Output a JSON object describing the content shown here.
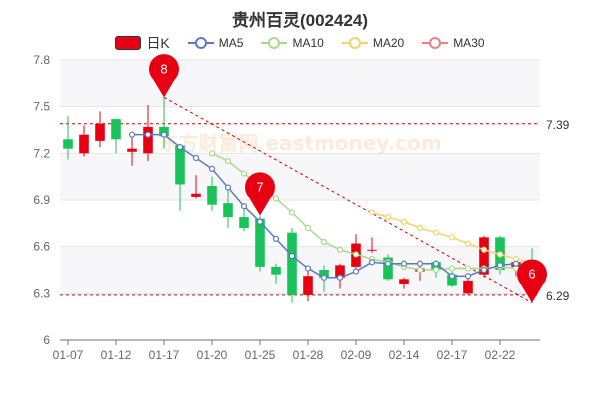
{
  "title": "贵州百灵(002424)",
  "legend": [
    {
      "label": "日K",
      "color": "#e60012",
      "kind": "candle"
    },
    {
      "label": "MA5",
      "color": "#5b7bc0",
      "kind": "line"
    },
    {
      "label": "MA10",
      "color": "#a8d98a",
      "kind": "line"
    },
    {
      "label": "MA20",
      "color": "#f5d26b",
      "kind": "line"
    },
    {
      "label": "MA30",
      "color": "#f08080",
      "kind": "line"
    }
  ],
  "watermark": "东方财富网 eastmoney.com",
  "chart_data": {
    "type": "candlestick",
    "ylim": [
      6.0,
      7.8
    ],
    "y_ticks": [
      "6",
      "6.3",
      "6.6",
      "6.9",
      "7.2",
      "7.5",
      "7.8"
    ],
    "x_ticks": [
      {
        "label": "01-07",
        "index": 0
      },
      {
        "label": "01-12",
        "index": 3
      },
      {
        "label": "01-17",
        "index": 6
      },
      {
        "label": "01-20",
        "index": 9
      },
      {
        "label": "01-25",
        "index": 12
      },
      {
        "label": "01-28",
        "index": 15
      },
      {
        "label": "02-09",
        "index": 18
      },
      {
        "label": "02-14",
        "index": 21
      },
      {
        "label": "02-17",
        "index": 24
      },
      {
        "label": "02-22",
        "index": 27
      }
    ],
    "up_color": "#e60012",
    "down_color": "#19c35a",
    "candles": [
      {
        "o": 7.29,
        "c": 7.23,
        "h": 7.44,
        "l": 7.16
      },
      {
        "o": 7.2,
        "c": 7.32,
        "h": 7.38,
        "l": 7.18
      },
      {
        "o": 7.28,
        "c": 7.39,
        "h": 7.47,
        "l": 7.24
      },
      {
        "o": 7.42,
        "c": 7.29,
        "h": 7.42,
        "l": 7.2
      },
      {
        "o": 7.21,
        "c": 7.23,
        "h": 7.34,
        "l": 7.12
      },
      {
        "o": 7.2,
        "c": 7.37,
        "h": 7.51,
        "l": 7.15
      },
      {
        "o": 7.37,
        "c": 7.31,
        "h": 7.56,
        "l": 7.23
      },
      {
        "o": 7.25,
        "c": 7.0,
        "h": 7.26,
        "l": 6.83
      },
      {
        "o": 6.92,
        "c": 6.94,
        "h": 7.06,
        "l": 6.91
      },
      {
        "o": 6.99,
        "c": 6.87,
        "h": 7.05,
        "l": 6.83
      },
      {
        "o": 6.88,
        "c": 6.79,
        "h": 6.98,
        "l": 6.72
      },
      {
        "o": 6.79,
        "c": 6.72,
        "h": 6.88,
        "l": 6.7
      },
      {
        "o": 6.78,
        "c": 6.47,
        "h": 6.8,
        "l": 6.44
      },
      {
        "o": 6.47,
        "c": 6.42,
        "h": 6.49,
        "l": 6.36
      },
      {
        "o": 6.69,
        "c": 6.29,
        "h": 6.72,
        "l": 6.24
      },
      {
        "o": 6.29,
        "c": 6.41,
        "h": 6.45,
        "l": 6.25
      },
      {
        "o": 6.45,
        "c": 6.4,
        "h": 6.48,
        "l": 6.31
      },
      {
        "o": 6.4,
        "c": 6.48,
        "h": 6.49,
        "l": 6.33
      },
      {
        "o": 6.47,
        "c": 6.62,
        "h": 6.68,
        "l": 6.43
      },
      {
        "o": 6.58,
        "c": 6.58,
        "h": 6.66,
        "l": 6.56
      },
      {
        "o": 6.53,
        "c": 6.39,
        "h": 6.55,
        "l": 6.38
      },
      {
        "o": 6.36,
        "c": 6.39,
        "h": 6.4,
        "l": 6.33
      },
      {
        "o": 6.44,
        "c": 6.46,
        "h": 6.5,
        "l": 6.38
      },
      {
        "o": 6.5,
        "c": 6.45,
        "h": 6.51,
        "l": 6.4
      },
      {
        "o": 6.42,
        "c": 6.35,
        "h": 6.44,
        "l": 6.34
      },
      {
        "o": 6.3,
        "c": 6.38,
        "h": 6.4,
        "l": 6.29
      },
      {
        "o": 6.42,
        "c": 6.66,
        "h": 6.67,
        "l": 6.4
      },
      {
        "o": 6.66,
        "c": 6.45,
        "h": 6.67,
        "l": 6.42
      },
      {
        "o": 6.47,
        "c": 6.5,
        "h": 6.53,
        "l": 6.41
      },
      {
        "o": 6.49,
        "c": 6.4,
        "h": 6.59,
        "l": 6.24
      }
    ],
    "ma5": [
      null,
      null,
      null,
      null,
      7.32,
      7.32,
      7.32,
      7.24,
      7.17,
      7.1,
      6.98,
      6.86,
      6.76,
      6.65,
      6.54,
      6.46,
      6.4,
      6.4,
      6.44,
      6.5,
      6.49,
      6.49,
      6.49,
      6.49,
      6.41,
      6.41,
      6.45,
      6.48,
      6.49,
      6.47
    ],
    "ma10": [
      null,
      null,
      null,
      null,
      null,
      null,
      null,
      null,
      null,
      7.2,
      7.15,
      7.07,
      6.99,
      6.91,
      6.82,
      6.72,
      6.63,
      6.58,
      6.55,
      6.52,
      6.5,
      6.47,
      6.45,
      6.45,
      6.46,
      6.46,
      6.46,
      6.47,
      6.46,
      6.44
    ],
    "ma20": [
      null,
      null,
      null,
      null,
      null,
      null,
      null,
      null,
      null,
      null,
      null,
      null,
      null,
      null,
      null,
      null,
      null,
      null,
      null,
      6.82,
      6.79,
      6.76,
      6.72,
      6.69,
      6.66,
      6.62,
      6.58,
      6.55,
      6.52,
      6.49
    ],
    "ma30": [],
    "markers": [
      {
        "index": 6,
        "label": "8",
        "price": 7.56
      },
      {
        "index": 12,
        "label": "7",
        "price": 6.8
      },
      {
        "index": 29,
        "label": "6",
        "price": 6.24
      }
    ],
    "high_line": {
      "value": 7.39,
      "label": "7.39"
    },
    "low_line": {
      "value": 6.29,
      "label": "6.29"
    },
    "trend_line": {
      "from_index": 6,
      "from_price": 7.56,
      "to_index": 29,
      "to_price": 6.24
    }
  }
}
